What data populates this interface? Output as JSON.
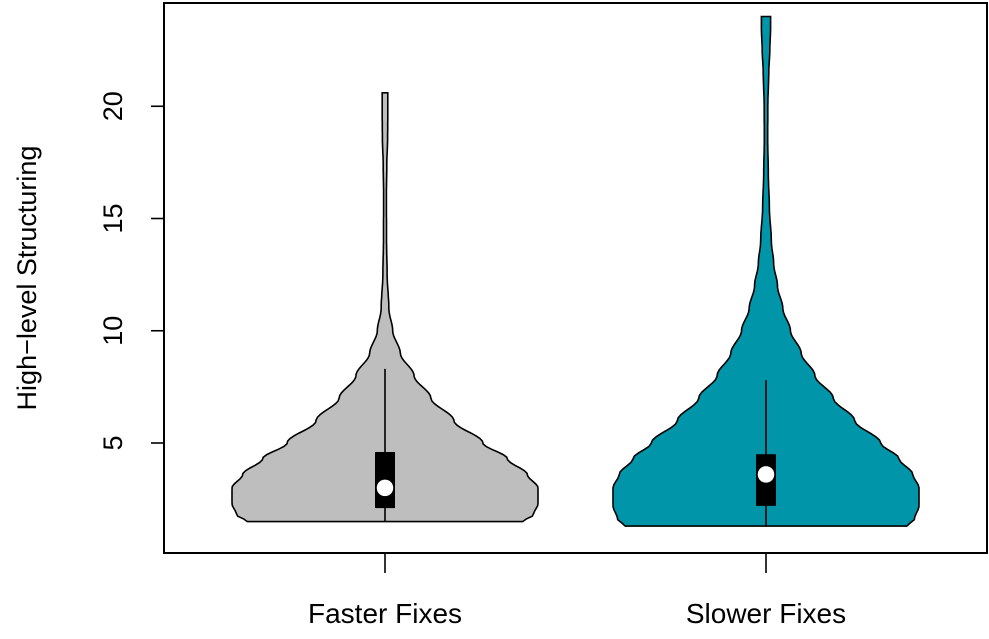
{
  "chart_data": {
    "type": "violin",
    "title": "",
    "xlabel": "",
    "ylabel": "High−level Structuring",
    "ylim": [
      0.1,
      24.6
    ],
    "yticks": [
      5,
      10,
      15,
      20
    ],
    "ytick_labels": [
      "5",
      "10",
      "15",
      "20"
    ],
    "grid": false,
    "categories": [
      "Faster Fixes",
      "Slower Fixes"
    ],
    "colors": {
      "Faster Fixes": "#bebebe",
      "Slower Fixes": "#0095a8"
    },
    "series": [
      {
        "category": "Faster Fixes",
        "min": 1.5,
        "max": 20.6,
        "q1": 2.1,
        "median": 3.0,
        "q3": 4.6,
        "whisker_low": 1.5,
        "whisker_high": 8.3,
        "density_profile": [
          [
            1.5,
            0.9
          ],
          [
            1.8,
            0.97
          ],
          [
            2.3,
            1.0
          ],
          [
            3.0,
            1.0
          ],
          [
            3.6,
            0.93
          ],
          [
            4.3,
            0.8
          ],
          [
            5.0,
            0.64
          ],
          [
            6.0,
            0.45
          ],
          [
            7.0,
            0.3
          ],
          [
            8.0,
            0.19
          ],
          [
            9.0,
            0.1
          ],
          [
            10.0,
            0.05
          ],
          [
            11.0,
            0.025
          ],
          [
            12.5,
            0.014
          ],
          [
            14.0,
            0.01
          ],
          [
            16.0,
            0.009
          ],
          [
            17.5,
            0.012
          ],
          [
            18.5,
            0.017
          ],
          [
            19.5,
            0.018
          ],
          [
            20.6,
            0.018
          ]
        ]
      },
      {
        "category": "Slower Fixes",
        "min": 1.3,
        "max": 24.0,
        "q1": 2.2,
        "median": 3.6,
        "q3": 4.5,
        "whisker_low": 1.3,
        "whisker_high": 7.8,
        "density_profile": [
          [
            1.3,
            0.92
          ],
          [
            1.6,
            0.97
          ],
          [
            2.2,
            1.0
          ],
          [
            3.0,
            1.0
          ],
          [
            3.6,
            0.96
          ],
          [
            4.3,
            0.87
          ],
          [
            5.0,
            0.75
          ],
          [
            6.0,
            0.58
          ],
          [
            7.0,
            0.44
          ],
          [
            8.0,
            0.32
          ],
          [
            9.0,
            0.23
          ],
          [
            10.0,
            0.16
          ],
          [
            11.0,
            0.11
          ],
          [
            12.0,
            0.075
          ],
          [
            13.0,
            0.05
          ],
          [
            14.0,
            0.035
          ],
          [
            15.5,
            0.022
          ],
          [
            17.0,
            0.015
          ],
          [
            18.5,
            0.011
          ],
          [
            20.0,
            0.012
          ],
          [
            21.5,
            0.018
          ],
          [
            22.5,
            0.025
          ],
          [
            23.5,
            0.03
          ],
          [
            24.0,
            0.03
          ]
        ]
      }
    ]
  }
}
